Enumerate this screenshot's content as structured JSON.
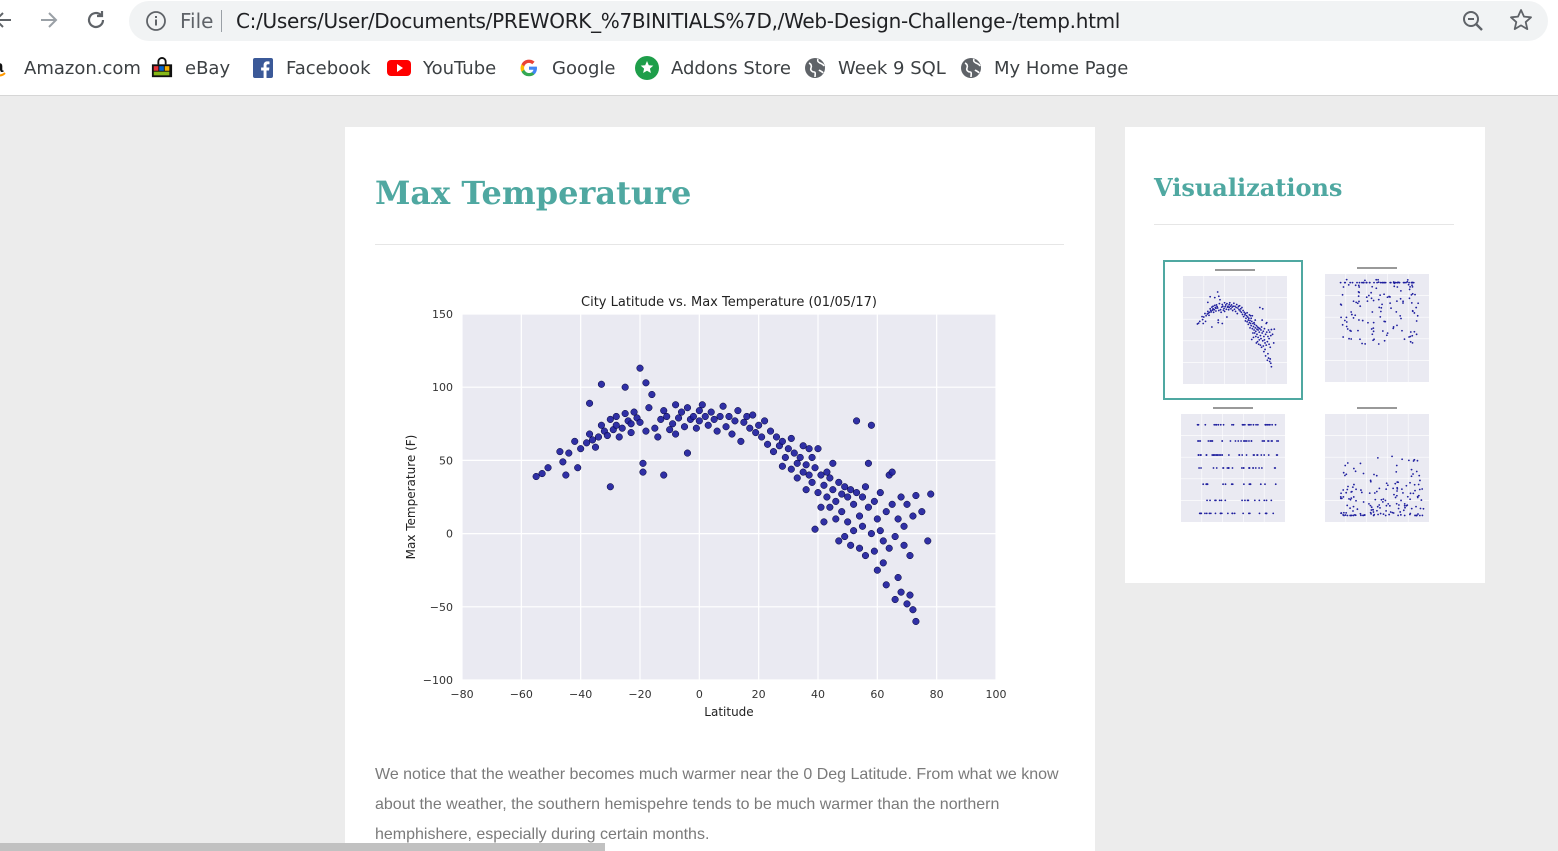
{
  "browser": {
    "scheme": "File",
    "url": "C:/Users/User/Documents/PREWORK_%7BINITIALS%7D,/Web-Design-Challenge-/temp.html",
    "bookmarks": [
      {
        "label": "Amazon.com",
        "icon": "amazon-icon"
      },
      {
        "label": "eBay",
        "icon": "ebay-icon"
      },
      {
        "label": "Facebook",
        "icon": "facebook-icon"
      },
      {
        "label": "YouTube",
        "icon": "youtube-icon"
      },
      {
        "label": "Google",
        "icon": "google-icon"
      },
      {
        "label": "Addons Store",
        "icon": "addons-store-icon"
      },
      {
        "label": "Week 9 SQL",
        "icon": "globe-icon"
      },
      {
        "label": "My Home Page",
        "icon": "globe-icon"
      }
    ]
  },
  "page": {
    "title": "Max Temperature",
    "description": "We notice that the weather becomes much warmer near the 0 Deg Latitude. From what we know about the weather, the southern hemispehre tends to be much warmer than the northern hemphishere, especially during certain months.",
    "accent": "#4fa8a1"
  },
  "sidebar": {
    "title": "Visualizations",
    "thumbnails": [
      {
        "name": "max-temperature",
        "active": true
      },
      {
        "name": "humidity",
        "active": false
      },
      {
        "name": "cloudiness",
        "active": false
      },
      {
        "name": "wind-speed",
        "active": false
      }
    ]
  },
  "chart_data": {
    "type": "scatter",
    "title": "City Latitude vs. Max Temperature (01/05/17)",
    "xlabel": "Latitude",
    "ylabel": "Max Temperature (F)",
    "xlim": [
      -80,
      100
    ],
    "ylim": [
      -100,
      150
    ],
    "xticks": [
      -80,
      -60,
      -40,
      -20,
      0,
      20,
      40,
      60,
      80,
      100
    ],
    "yticks": [
      -100,
      -50,
      0,
      50,
      100,
      150
    ],
    "grid": true,
    "background": "#eaeaf2",
    "marker_color": "#1f1f9e",
    "points": [
      [
        -55,
        39
      ],
      [
        -53,
        41
      ],
      [
        -51,
        45
      ],
      [
        -47,
        56
      ],
      [
        -46,
        49
      ],
      [
        -45,
        40
      ],
      [
        -44,
        55
      ],
      [
        -42,
        63
      ],
      [
        -41,
        45
      ],
      [
        -40,
        58
      ],
      [
        -38,
        62
      ],
      [
        -37,
        68
      ],
      [
        -37,
        89
      ],
      [
        -36,
        64
      ],
      [
        -35,
        59
      ],
      [
        -34,
        66
      ],
      [
        -33,
        74
      ],
      [
        -33,
        102
      ],
      [
        -32,
        70
      ],
      [
        -31,
        67
      ],
      [
        -30,
        78
      ],
      [
        -30,
        32
      ],
      [
        -29,
        71
      ],
      [
        -28,
        74
      ],
      [
        -28,
        80
      ],
      [
        -27,
        66
      ],
      [
        -26,
        72
      ],
      [
        -25,
        82
      ],
      [
        -25,
        100
      ],
      [
        -24,
        77
      ],
      [
        -23,
        69
      ],
      [
        -23,
        75
      ],
      [
        -22,
        83
      ],
      [
        -21,
        79
      ],
      [
        -20,
        113
      ],
      [
        -20,
        76
      ],
      [
        -19,
        48
      ],
      [
        -19,
        42
      ],
      [
        -18,
        103
      ],
      [
        -18,
        70
      ],
      [
        -17,
        86
      ],
      [
        -16,
        95
      ],
      [
        -15,
        72
      ],
      [
        -14,
        66
      ],
      [
        -13,
        78
      ],
      [
        -12,
        40
      ],
      [
        -12,
        84
      ],
      [
        -11,
        80
      ],
      [
        -10,
        71
      ],
      [
        -9,
        75
      ],
      [
        -8,
        88
      ],
      [
        -8,
        68
      ],
      [
        -7,
        79
      ],
      [
        -6,
        83
      ],
      [
        -5,
        73
      ],
      [
        -4,
        86
      ],
      [
        -4,
        55
      ],
      [
        -3,
        78
      ],
      [
        -2,
        80
      ],
      [
        -1,
        72
      ],
      [
        0,
        84
      ],
      [
        0,
        77
      ],
      [
        1,
        88
      ],
      [
        2,
        80
      ],
      [
        3,
        74
      ],
      [
        4,
        83
      ],
      [
        5,
        78
      ],
      [
        6,
        70
      ],
      [
        7,
        80
      ],
      [
        8,
        87
      ],
      [
        9,
        73
      ],
      [
        10,
        80
      ],
      [
        11,
        68
      ],
      [
        12,
        77
      ],
      [
        13,
        84
      ],
      [
        14,
        63
      ],
      [
        15,
        76
      ],
      [
        16,
        80
      ],
      [
        17,
        72
      ],
      [
        18,
        81
      ],
      [
        19,
        69
      ],
      [
        20,
        74
      ],
      [
        21,
        66
      ],
      [
        22,
        77
      ],
      [
        23,
        61
      ],
      [
        24,
        70
      ],
      [
        25,
        56
      ],
      [
        26,
        66
      ],
      [
        27,
        60
      ],
      [
        28,
        46
      ],
      [
        28,
        63
      ],
      [
        29,
        52
      ],
      [
        30,
        58
      ],
      [
        31,
        44
      ],
      [
        31,
        65
      ],
      [
        32,
        55
      ],
      [
        33,
        48
      ],
      [
        33,
        38
      ],
      [
        34,
        52
      ],
      [
        35,
        42
      ],
      [
        35,
        60
      ],
      [
        36,
        47
      ],
      [
        36,
        30
      ],
      [
        37,
        40
      ],
      [
        38,
        52
      ],
      [
        38,
        35
      ],
      [
        39,
        45
      ],
      [
        39,
        3
      ],
      [
        40,
        28
      ],
      [
        40,
        58
      ],
      [
        41,
        40
      ],
      [
        42,
        33
      ],
      [
        42,
        8
      ],
      [
        43,
        25
      ],
      [
        44,
        38
      ],
      [
        44,
        18
      ],
      [
        45,
        30
      ],
      [
        45,
        48
      ],
      [
        46,
        22
      ],
      [
        46,
        10
      ],
      [
        47,
        35
      ],
      [
        47,
        -5
      ],
      [
        48,
        27
      ],
      [
        48,
        15
      ],
      [
        49,
        32
      ],
      [
        49,
        -2
      ],
      [
        50,
        25
      ],
      [
        50,
        8
      ],
      [
        51,
        30
      ],
      [
        51,
        -8
      ],
      [
        52,
        20
      ],
      [
        52,
        2
      ],
      [
        53,
        28
      ],
      [
        53,
        77
      ],
      [
        54,
        12
      ],
      [
        54,
        -10
      ],
      [
        55,
        25
      ],
      [
        55,
        5
      ],
      [
        56,
        32
      ],
      [
        56,
        -15
      ],
      [
        57,
        18
      ],
      [
        57,
        48
      ],
      [
        58,
        0
      ],
      [
        58,
        74
      ],
      [
        59,
        22
      ],
      [
        59,
        -12
      ],
      [
        60,
        10
      ],
      [
        60,
        -25
      ],
      [
        61,
        28
      ],
      [
        61,
        2
      ],
      [
        62,
        -5
      ],
      [
        62,
        -20
      ],
      [
        63,
        15
      ],
      [
        63,
        -35
      ],
      [
        64,
        40
      ],
      [
        64,
        -10
      ],
      [
        65,
        20
      ],
      [
        65,
        42
      ],
      [
        66,
        -2
      ],
      [
        66,
        -45
      ],
      [
        67,
        10
      ],
      [
        67,
        -30
      ],
      [
        68,
        25
      ],
      [
        68,
        -40
      ],
      [
        69,
        -8
      ],
      [
        69,
        5
      ],
      [
        70,
        20
      ],
      [
        70,
        -48
      ],
      [
        71,
        -15
      ],
      [
        71,
        -42
      ],
      [
        72,
        12
      ],
      [
        72,
        -52
      ],
      [
        73,
        -60
      ],
      [
        73,
        26
      ],
      [
        75,
        15
      ],
      [
        77,
        -5
      ],
      [
        78,
        27
      ],
      [
        41,
        18
      ],
      [
        43,
        42
      ],
      [
        37,
        58
      ]
    ]
  }
}
